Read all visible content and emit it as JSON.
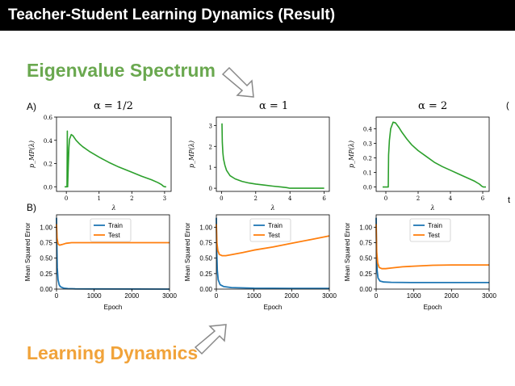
{
  "slide": {
    "title": "Teacher-Student Learning Dynamics (Result)",
    "eigen_label": "Eigenvalue Spectrum",
    "learning_label": "Learning Dynamics",
    "row_a": "A)",
    "row_b": "B)",
    "clip_right_a": "(",
    "clip_right_b": "t",
    "colors": {
      "green": "#6aa84f",
      "orange": "#f1a33a",
      "train": "#1f77b4",
      "test": "#ff7f0e",
      "spectrum": "#2ca02c"
    }
  },
  "chart_data": [
    {
      "type": "line",
      "title": "α = 1/2",
      "xlabel": "λ",
      "ylabel": "p_MP(λ)",
      "xlim": [
        -0.3,
        3.2
      ],
      "ylim": [
        -0.04,
        0.6
      ],
      "xticks": [
        0,
        1,
        2,
        3
      ],
      "xticklabels": [
        "0",
        "1",
        "2",
        "3"
      ],
      "yticks": [
        0.0,
        0.2,
        0.4,
        0.6
      ],
      "yticklabels": [
        "0.0",
        "0.2",
        "0.4",
        "0.6"
      ],
      "series": [
        {
          "x": [
            -0.05,
            0.02,
            0.03,
            0.04,
            0.06,
            0.08,
            0.1,
            0.15,
            0.2,
            0.3,
            0.4,
            0.5,
            0.7,
            1.0,
            1.3,
            1.6,
            2.0,
            2.3,
            2.6,
            2.8,
            2.9,
            2.96,
            3.0,
            3.05
          ],
          "y": [
            0.0,
            0.0,
            0.48,
            0.0,
            0.18,
            0.34,
            0.41,
            0.45,
            0.44,
            0.4,
            0.37,
            0.345,
            0.305,
            0.255,
            0.21,
            0.17,
            0.125,
            0.09,
            0.06,
            0.035,
            0.02,
            0.005,
            0.0,
            0.0
          ]
        }
      ]
    },
    {
      "type": "line",
      "title": "α = 1",
      "xlabel": "λ",
      "ylabel": "p_MP(λ)",
      "xlim": [
        -0.3,
        6.3
      ],
      "ylim": [
        -0.15,
        3.4
      ],
      "xticks": [
        0,
        2,
        4,
        6
      ],
      "xticklabels": [
        "0",
        "2",
        "4",
        "6"
      ],
      "yticks": [
        0,
        1,
        2,
        3
      ],
      "yticklabels": [
        "0",
        "1",
        "2",
        "3"
      ],
      "series": [
        {
          "x": [
            0.03,
            0.05,
            0.08,
            0.12,
            0.2,
            0.3,
            0.5,
            0.8,
            1.2,
            1.6,
            2.0,
            2.5,
            3.0,
            3.5,
            3.8,
            4.0,
            4.3,
            5.0,
            6.0
          ],
          "y": [
            3.1,
            2.2,
            1.7,
            1.4,
            1.1,
            0.85,
            0.6,
            0.45,
            0.33,
            0.25,
            0.2,
            0.15,
            0.1,
            0.06,
            0.03,
            0.0,
            0.0,
            0.0,
            0.0
          ]
        }
      ]
    },
    {
      "type": "line",
      "title": "α = 2",
      "xlabel": "λ",
      "ylabel": "p_MP(λ)",
      "xlim": [
        -0.6,
        6.4
      ],
      "ylim": [
        -0.03,
        0.48
      ],
      "xticks": [
        0,
        2,
        4,
        6
      ],
      "xticklabels": [
        "0",
        "2",
        "4",
        "6"
      ],
      "yticks": [
        0.0,
        0.1,
        0.2,
        0.3,
        0.4
      ],
      "yticklabels": [
        "0.0",
        "0.1",
        "0.2",
        "0.3",
        "0.4"
      ],
      "series": [
        {
          "x": [
            -0.2,
            0.15,
            0.17,
            0.22,
            0.3,
            0.45,
            0.6,
            0.8,
            1.0,
            1.3,
            1.6,
            2.0,
            2.5,
            3.0,
            3.5,
            4.0,
            4.5,
            5.0,
            5.5,
            5.8,
            5.95,
            6.05,
            6.2
          ],
          "y": [
            0.0,
            0.0,
            0.22,
            0.32,
            0.4,
            0.445,
            0.44,
            0.41,
            0.375,
            0.33,
            0.29,
            0.25,
            0.21,
            0.17,
            0.14,
            0.115,
            0.09,
            0.065,
            0.04,
            0.02,
            0.005,
            0.0,
            0.0
          ]
        }
      ]
    },
    {
      "type": "line",
      "xlabel": "Epoch",
      "ylabel": "Mean Squared Error",
      "xlim": [
        0,
        3000
      ],
      "ylim": [
        0,
        1.2
      ],
      "xticks": [
        0,
        1000,
        2000,
        3000
      ],
      "xticklabels": [
        "0",
        "1000",
        "2000",
        "3000"
      ],
      "yticks": [
        0.0,
        0.25,
        0.5,
        0.75,
        1.0
      ],
      "yticklabels": [
        "0.00",
        "0.25",
        "0.50",
        "0.75",
        "1.00"
      ],
      "legend": "top-center",
      "series": [
        {
          "name": "Train",
          "x": [
            0,
            10,
            20,
            40,
            70,
            100,
            150,
            200,
            300,
            500,
            1000,
            3000
          ],
          "y": [
            1.15,
            0.65,
            0.35,
            0.15,
            0.07,
            0.04,
            0.025,
            0.015,
            0.008,
            0.004,
            0.002,
            0.0
          ]
        },
        {
          "name": "Test",
          "x": [
            0,
            15,
            40,
            80,
            150,
            250,
            400,
            600,
            1000,
            2000,
            3000
          ],
          "y": [
            1.05,
            0.82,
            0.73,
            0.71,
            0.72,
            0.74,
            0.75,
            0.75,
            0.75,
            0.75,
            0.75
          ]
        }
      ]
    },
    {
      "type": "line",
      "xlabel": "Epoch",
      "ylabel": "Mean Squared Error",
      "xlim": [
        0,
        3000
      ],
      "ylim": [
        0,
        1.2
      ],
      "xticks": [
        0,
        1000,
        2000,
        3000
      ],
      "xticklabels": [
        "0",
        "1000",
        "2000",
        "3000"
      ],
      "yticks": [
        0.0,
        0.25,
        0.5,
        0.75,
        1.0
      ],
      "yticklabels": [
        "0.00",
        "0.25",
        "0.50",
        "0.75",
        "1.00"
      ],
      "legend": "top-center",
      "series": [
        {
          "name": "Train",
          "x": [
            0,
            10,
            25,
            50,
            100,
            200,
            400,
            700,
            1000,
            2000,
            3000
          ],
          "y": [
            1.15,
            0.6,
            0.3,
            0.15,
            0.07,
            0.04,
            0.025,
            0.02,
            0.015,
            0.01,
            0.01
          ]
        },
        {
          "name": "Test",
          "x": [
            0,
            15,
            40,
            80,
            150,
            250,
            400,
            700,
            1000,
            1500,
            2000,
            2500,
            3000
          ],
          "y": [
            1.05,
            0.75,
            0.62,
            0.56,
            0.54,
            0.54,
            0.555,
            0.59,
            0.63,
            0.68,
            0.74,
            0.8,
            0.86
          ]
        }
      ]
    },
    {
      "type": "line",
      "xlabel": "Epoch",
      "ylabel": "Mean Squared Error",
      "xlim": [
        0,
        3000
      ],
      "ylim": [
        0,
        1.2
      ],
      "xticks": [
        0,
        1000,
        2000,
        3000
      ],
      "xticklabels": [
        "0",
        "1000",
        "2000",
        "3000"
      ],
      "yticks": [
        0.0,
        0.25,
        0.5,
        0.75,
        1.0
      ],
      "yticklabels": [
        "0.00",
        "0.25",
        "0.50",
        "0.75",
        "1.00"
      ],
      "legend": "top-center",
      "series": [
        {
          "name": "Train",
          "x": [
            0,
            10,
            25,
            50,
            100,
            200,
            400,
            1000,
            2000,
            3000
          ],
          "y": [
            1.15,
            0.55,
            0.3,
            0.18,
            0.13,
            0.115,
            0.11,
            0.105,
            0.105,
            0.105
          ]
        },
        {
          "name": "Test",
          "x": [
            0,
            15,
            40,
            80,
            150,
            250,
            400,
            700,
            1000,
            1500,
            2000,
            2500,
            3000
          ],
          "y": [
            1.05,
            0.6,
            0.42,
            0.35,
            0.33,
            0.33,
            0.34,
            0.36,
            0.37,
            0.385,
            0.39,
            0.39,
            0.39
          ]
        }
      ]
    }
  ]
}
